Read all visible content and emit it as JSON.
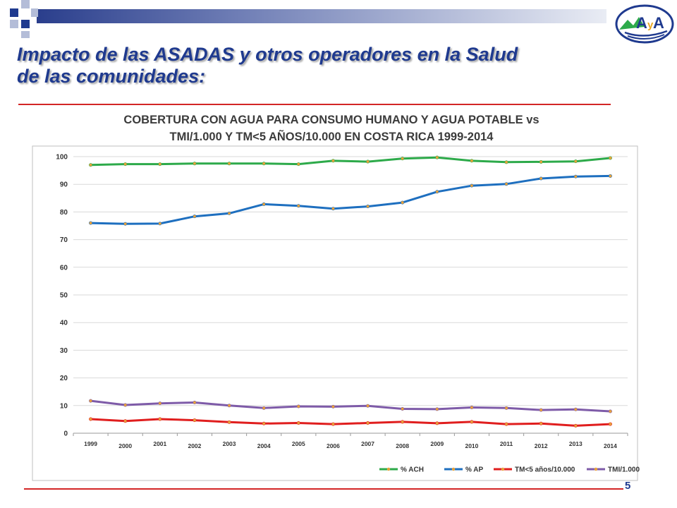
{
  "slide": {
    "title_line1": "Impacto de las ASADAS  y otros operadores en la Salud",
    "title_line2": "de las comunidades:",
    "page_number": "5",
    "logo_text": "AyA",
    "accent_colors": {
      "title": "#1F3A8F",
      "rule": "#D32626",
      "deco_blue": "#1F3A8F",
      "deco_light": "#B4BDD8"
    }
  },
  "chart_data": {
    "type": "line",
    "title_line1": "COBERTURA CON AGUA PARA CONSUMO HUMANO  Y AGUA POTABLE vs",
    "title_line2": "TMI/1.000 Y TM<5 AÑOS/10.000 EN COSTA RICA 1999-2014",
    "categories": [
      "1999",
      "2000",
      "2001",
      "2002",
      "2003",
      "2004",
      "2005",
      "2006",
      "2007",
      "2008",
      "2009",
      "2010",
      "2011",
      "2012",
      "2013",
      "2014"
    ],
    "ylim": [
      0,
      100
    ],
    "yticks": [
      "0",
      "10",
      "20",
      "30",
      "40",
      "50",
      "60",
      "70",
      "80",
      "90",
      "100"
    ],
    "grid": true,
    "legend_position": "bottom-right",
    "series": [
      {
        "name": "% ACH",
        "color": "#2DAA4A",
        "values": [
          97,
          97.3,
          97.3,
          97.5,
          97.5,
          97.5,
          97.3,
          98.5,
          98.2,
          99.3,
          99.7,
          98.5,
          98,
          98.1,
          98.3,
          99.5
        ]
      },
      {
        "name": "% AP",
        "color": "#1E6FBF",
        "values": [
          76,
          75.7,
          75.8,
          78.4,
          79.5,
          82.8,
          82.2,
          81.2,
          82,
          83.4,
          87.3,
          89.5,
          90.1,
          92.1,
          92.8,
          93
        ]
      },
      {
        "name": "TM<5 años/10.000",
        "color": "#E01E1E",
        "values": [
          5.1,
          4.4,
          5.1,
          4.7,
          4,
          3.5,
          3.7,
          3.3,
          3.7,
          4.1,
          3.6,
          4.1,
          3.3,
          3.5,
          2.7,
          3.3
        ]
      },
      {
        "name": "TMI/1.000",
        "color": "#7E5BA8",
        "values": [
          11.7,
          10.2,
          10.8,
          11.1,
          10,
          9.1,
          9.7,
          9.6,
          9.9,
          8.8,
          8.7,
          9.3,
          9.1,
          8.4,
          8.6,
          7.9
        ]
      }
    ]
  }
}
